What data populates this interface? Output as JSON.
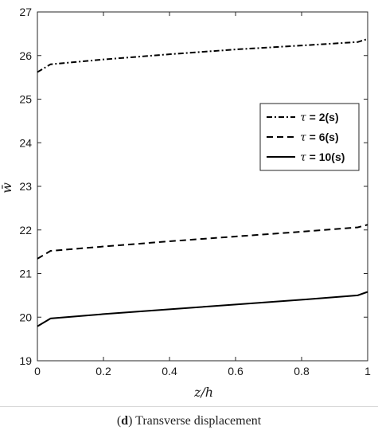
{
  "chart_data": {
    "type": "line",
    "xlabel": "z/h",
    "ylabel": "w̄",
    "xlim": [
      0,
      1
    ],
    "ylim": [
      19,
      27
    ],
    "xticks": [
      "0",
      "0.2",
      "0.4",
      "0.6",
      "0.8",
      "1"
    ],
    "yticks": [
      "19",
      "20",
      "21",
      "22",
      "23",
      "24",
      "25",
      "26",
      "27"
    ],
    "grid": false,
    "legend_position": "right",
    "series": [
      {
        "name": "τ = 2(s)",
        "symbol": "τ",
        "label_rest": " = 2(s)",
        "style": "dash-dot",
        "color": "#000000",
        "x": [
          0,
          0.04,
          0.2,
          0.4,
          0.6,
          0.8,
          0.97,
          1
        ],
        "y": [
          25.62,
          25.8,
          25.91,
          26.03,
          26.14,
          26.23,
          26.31,
          26.38
        ]
      },
      {
        "name": "τ = 6(s)",
        "symbol": "τ",
        "label_rest": " = 6(s)",
        "style": "dashed",
        "color": "#000000",
        "x": [
          0,
          0.04,
          0.2,
          0.4,
          0.6,
          0.8,
          0.97,
          1
        ],
        "y": [
          21.34,
          21.52,
          21.62,
          21.74,
          21.85,
          21.96,
          22.06,
          22.12
        ]
      },
      {
        "name": "τ = 10(s)",
        "symbol": "τ",
        "label_rest": " = 10(s)",
        "style": "solid",
        "color": "#000000",
        "x": [
          0,
          0.04,
          0.2,
          0.4,
          0.6,
          0.8,
          0.97,
          1
        ],
        "y": [
          19.79,
          19.97,
          20.07,
          20.18,
          20.29,
          20.4,
          20.5,
          20.58
        ]
      }
    ]
  },
  "caption": {
    "label": "d",
    "text": "Transverse displacement"
  }
}
